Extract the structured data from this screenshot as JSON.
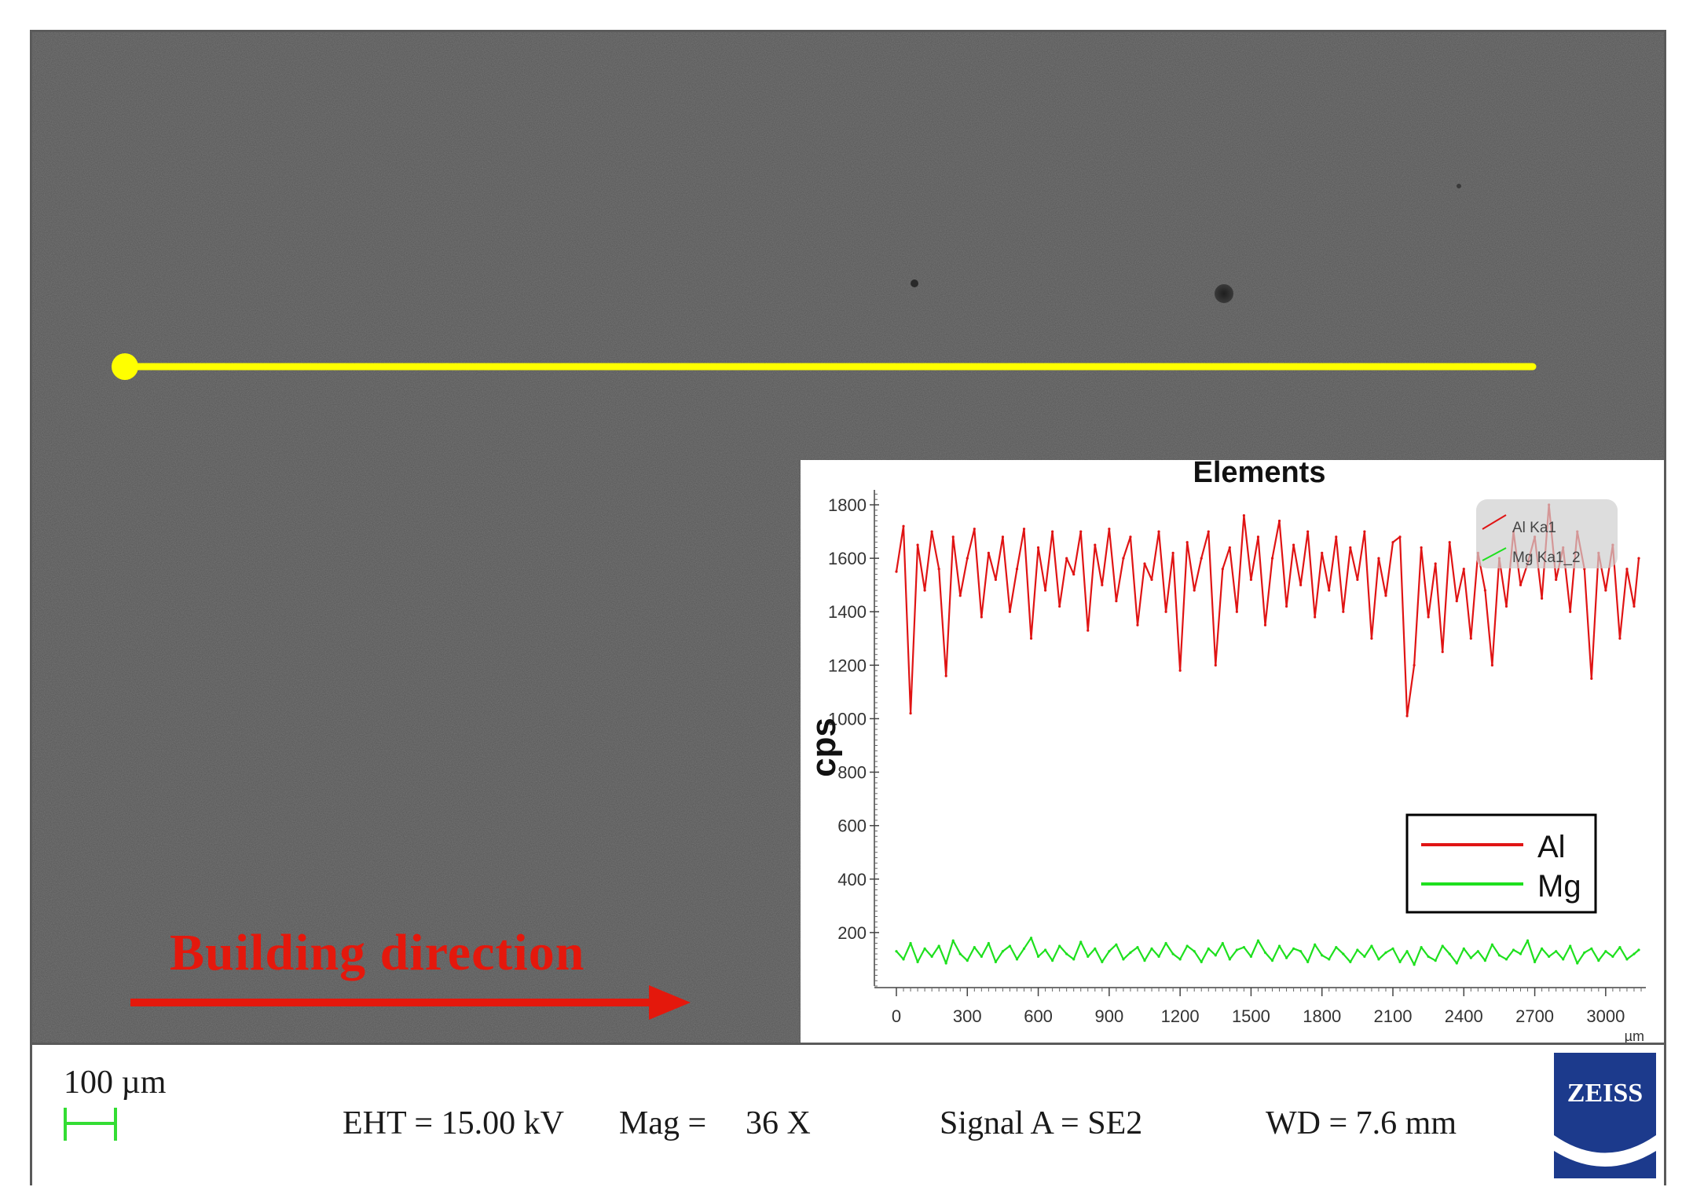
{
  "sem": {
    "building_direction": "Building direction",
    "colors": {
      "line_scan": "#ffff00",
      "arrow": "#e4180c",
      "background": "#585858"
    }
  },
  "info_bar": {
    "scalebar_label": "100 µm",
    "eht": "EHT = 15.00 kV",
    "mag_label": "Mag =",
    "mag_value": "36 X",
    "signal": "Signal A = SE2",
    "wd": "WD =  7.6 mm",
    "logo_text": "ZEISS"
  },
  "chart_data": {
    "type": "line",
    "title": "Elements",
    "xlabel": "",
    "x_unit": "µm",
    "ylabel": "cps",
    "xlim": [
      0,
      3150
    ],
    "ylim": [
      0,
      1850
    ],
    "x_ticks": [
      0,
      300,
      600,
      900,
      1200,
      1500,
      1800,
      2100,
      2400,
      2700,
      3000
    ],
    "y_ticks": [
      200,
      400,
      600,
      800,
      1000,
      1200,
      1400,
      1600,
      1800
    ],
    "x_tick_labels": [
      "0",
      "300",
      "600",
      "900",
      "1200",
      "1500",
      "1800",
      "2100",
      "2400",
      "2700",
      "3000"
    ],
    "y_tick_labels": [
      "200",
      "400",
      "600",
      "800",
      "1000",
      "1200",
      "1400",
      "1600",
      "1800"
    ],
    "small_legend": [
      "Al Ka1",
      "Mg Ka1_2"
    ],
    "legend": {
      "position": "lower-right",
      "entries": [
        "Al",
        "Mg"
      ]
    },
    "series": [
      {
        "name": "Al",
        "color": "#e01414",
        "x": [
          0,
          30,
          60,
          90,
          120,
          150,
          180,
          210,
          240,
          270,
          300,
          330,
          360,
          390,
          420,
          450,
          480,
          510,
          540,
          570,
          600,
          630,
          660,
          690,
          720,
          750,
          780,
          810,
          840,
          870,
          900,
          930,
          960,
          990,
          1020,
          1050,
          1080,
          1110,
          1140,
          1170,
          1200,
          1230,
          1260,
          1290,
          1320,
          1350,
          1380,
          1410,
          1440,
          1470,
          1500,
          1530,
          1560,
          1590,
          1620,
          1650,
          1680,
          1710,
          1740,
          1770,
          1800,
          1830,
          1860,
          1890,
          1920,
          1950,
          1980,
          2010,
          2040,
          2070,
          2100,
          2130,
          2160,
          2190,
          2220,
          2250,
          2280,
          2310,
          2340,
          2370,
          2400,
          2430,
          2460,
          2490,
          2520,
          2550,
          2580,
          2610,
          2640,
          2670,
          2700,
          2730,
          2760,
          2790,
          2820,
          2850,
          2880,
          2910,
          2940,
          2970,
          3000,
          3030,
          3060,
          3090,
          3120,
          3140
        ],
        "y": [
          1550,
          1720,
          1020,
          1650,
          1480,
          1700,
          1560,
          1160,
          1680,
          1460,
          1600,
          1710,
          1380,
          1620,
          1520,
          1680,
          1400,
          1560,
          1710,
          1300,
          1640,
          1480,
          1700,
          1420,
          1600,
          1540,
          1700,
          1330,
          1650,
          1500,
          1710,
          1440,
          1600,
          1680,
          1350,
          1580,
          1520,
          1700,
          1400,
          1620,
          1180,
          1660,
          1480,
          1600,
          1700,
          1200,
          1560,
          1640,
          1400,
          1760,
          1520,
          1680,
          1350,
          1600,
          1740,
          1420,
          1650,
          1500,
          1700,
          1380,
          1620,
          1480,
          1680,
          1400,
          1640,
          1520,
          1700,
          1300,
          1600,
          1460,
          1660,
          1680,
          1010,
          1200,
          1640,
          1380,
          1580,
          1250,
          1660,
          1440,
          1560,
          1300,
          1620,
          1480,
          1200,
          1600,
          1420,
          1700,
          1500,
          1580,
          1680,
          1450,
          1800,
          1520,
          1640,
          1400,
          1700,
          1560,
          1150,
          1620,
          1480,
          1650,
          1300,
          1560,
          1420,
          1600
        ]
      },
      {
        "name": "Mg",
        "color": "#1ee01e",
        "x": [
          0,
          30,
          60,
          90,
          120,
          150,
          180,
          210,
          240,
          270,
          300,
          330,
          360,
          390,
          420,
          450,
          480,
          510,
          540,
          570,
          600,
          630,
          660,
          690,
          720,
          750,
          780,
          810,
          840,
          870,
          900,
          930,
          960,
          990,
          1020,
          1050,
          1080,
          1110,
          1140,
          1170,
          1200,
          1230,
          1260,
          1290,
          1320,
          1350,
          1380,
          1410,
          1440,
          1470,
          1500,
          1530,
          1560,
          1590,
          1620,
          1650,
          1680,
          1710,
          1740,
          1770,
          1800,
          1830,
          1860,
          1890,
          1920,
          1950,
          1980,
          2010,
          2040,
          2070,
          2100,
          2130,
          2160,
          2190,
          2220,
          2250,
          2280,
          2310,
          2340,
          2370,
          2400,
          2430,
          2460,
          2490,
          2520,
          2550,
          2580,
          2610,
          2640,
          2670,
          2700,
          2730,
          2760,
          2790,
          2820,
          2850,
          2880,
          2910,
          2940,
          2970,
          3000,
          3030,
          3060,
          3090,
          3120,
          3140
        ],
        "y": [
          130,
          100,
          160,
          90,
          140,
          110,
          150,
          85,
          170,
          120,
          95,
          145,
          110,
          160,
          90,
          130,
          150,
          100,
          140,
          180,
          110,
          135,
          95,
          150,
          120,
          100,
          165,
          110,
          140,
          90,
          130,
          155,
          100,
          125,
          145,
          95,
          140,
          110,
          160,
          120,
          100,
          150,
          130,
          90,
          140,
          115,
          160,
          100,
          135,
          145,
          110,
          170,
          125,
          95,
          150,
          105,
          140,
          130,
          90,
          155,
          115,
          100,
          145,
          120,
          90,
          135,
          110,
          150,
          100,
          125,
          140,
          90,
          130,
          80,
          145,
          110,
          95,
          150,
          120,
          85,
          140,
          105,
          130,
          95,
          155,
          115,
          100,
          135,
          120,
          170,
          90,
          140,
          110,
          130,
          100,
          150,
          85,
          125,
          140,
          95,
          130,
          110,
          145,
          100,
          120,
          135
        ]
      }
    ]
  }
}
